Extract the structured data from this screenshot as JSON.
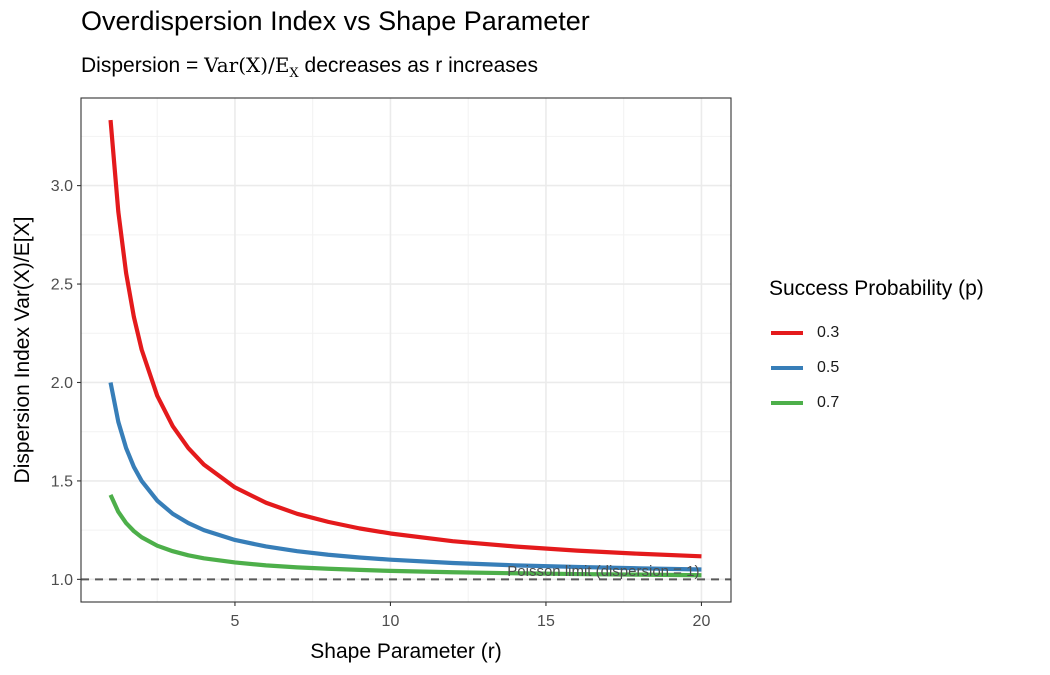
{
  "chart_data": {
    "type": "line",
    "title": "Overdispersion Index vs Shape Parameter",
    "subtitle": {
      "prefix": "Dispersion = ",
      "formula_main": "Var(X)/E",
      "formula_sub": "X",
      "suffix": " decreases as r increases"
    },
    "xlabel": "Shape Parameter (r)",
    "ylabel": "Dispersion Index Var(X)/E[X]",
    "xlim": [
      0.05,
      20.95
    ],
    "ylim": [
      0.885,
      3.445
    ],
    "x_ticks": [
      5,
      10,
      15,
      20
    ],
    "x_tick_labels": [
      "5",
      "10",
      "15",
      "20"
    ],
    "y_ticks": [
      1.0,
      1.5,
      2.0,
      2.5,
      3.0
    ],
    "y_tick_labels": [
      "1.0",
      "1.5",
      "2.0",
      "2.5",
      "3.0"
    ],
    "grid": true,
    "legend": {
      "title": "Success Probability (p)",
      "position": "right"
    },
    "series": [
      {
        "name": "0.3",
        "color": "#e41a1c",
        "x": [
          1,
          1.25,
          1.5,
          1.75,
          2,
          2.5,
          3,
          3.5,
          4,
          5,
          6,
          7,
          8,
          9,
          10,
          12,
          14,
          16,
          18,
          20
        ],
        "values": [
          3.333,
          2.867,
          2.556,
          2.333,
          2.167,
          1.933,
          1.778,
          1.667,
          1.583,
          1.467,
          1.389,
          1.333,
          1.292,
          1.259,
          1.233,
          1.194,
          1.167,
          1.146,
          1.13,
          1.117
        ]
      },
      {
        "name": "0.5",
        "color": "#377eb8",
        "x": [
          1,
          1.25,
          1.5,
          1.75,
          2,
          2.5,
          3,
          3.5,
          4,
          5,
          6,
          7,
          8,
          9,
          10,
          12,
          14,
          16,
          18,
          20
        ],
        "values": [
          2.0,
          1.8,
          1.667,
          1.571,
          1.5,
          1.4,
          1.333,
          1.286,
          1.25,
          1.2,
          1.167,
          1.143,
          1.125,
          1.111,
          1.1,
          1.083,
          1.071,
          1.063,
          1.056,
          1.05
        ]
      },
      {
        "name": "0.7",
        "color": "#4daf4a",
        "x": [
          1,
          1.25,
          1.5,
          1.75,
          2,
          2.5,
          3,
          3.5,
          4,
          5,
          6,
          7,
          8,
          9,
          10,
          12,
          14,
          16,
          18,
          20
        ],
        "values": [
          1.429,
          1.343,
          1.286,
          1.245,
          1.214,
          1.171,
          1.143,
          1.122,
          1.107,
          1.086,
          1.071,
          1.061,
          1.054,
          1.048,
          1.043,
          1.036,
          1.031,
          1.027,
          1.024,
          1.021
        ]
      }
    ],
    "reference_line": {
      "y": 1.0,
      "style": "dashed",
      "color": "#595959",
      "label": "Poisson limit (dispersion = 1)",
      "label_x": 20
    }
  }
}
